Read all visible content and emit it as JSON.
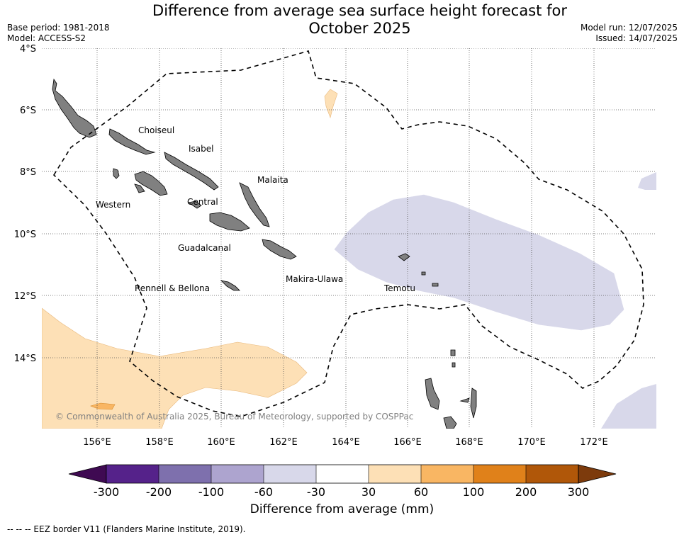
{
  "title": "Difference from average sea surface height forecast for October 2025",
  "title_line1": "Difference from average sea surface height forecast for",
  "title_line2": "October 2025",
  "meta": {
    "base_period": "Base period: 1981-2018",
    "model": "Model: ACCESS-S2",
    "model_run": "Model run: 12/07/2025",
    "issued": "Issued: 14/07/2025"
  },
  "map": {
    "lat_labels": [
      "4°S",
      "6°S",
      "8°S",
      "10°S",
      "12°S",
      "14°S"
    ],
    "lon_labels": [
      "156°E",
      "158°E",
      "160°E",
      "162°E",
      "164°E",
      "166°E",
      "168°E",
      "170°E",
      "172°E"
    ],
    "provinces": [
      "Choiseul",
      "Isabel",
      "Malaita",
      "Western",
      "Central",
      "Guadalcanal",
      "Makira-Ulawa",
      "Rennell & Bellona",
      "Temotu"
    ],
    "copyright": "© Commonwealth of Australia 2025, Bureau of Meteorology, supported by COSPPac",
    "land_color": "#808080",
    "eez_line": "dashed black"
  },
  "colorbar": {
    "title": "Difference from average (mm)",
    "tick_labels": [
      "-300",
      "-200",
      "-100",
      "-60",
      "-30",
      "30",
      "60",
      "100",
      "200",
      "300"
    ],
    "colors": [
      "#3f0a52",
      "#55228a",
      "#7e70ad",
      "#ada4cf",
      "#d8d8ea",
      "#ffffff",
      "#fde0b6",
      "#f9b663",
      "#e0811a",
      "#b05709",
      "#7d3b0c"
    ]
  },
  "footer": "--  --  -- EEZ border V11 (Flanders Marine Institute, 2019)."
}
